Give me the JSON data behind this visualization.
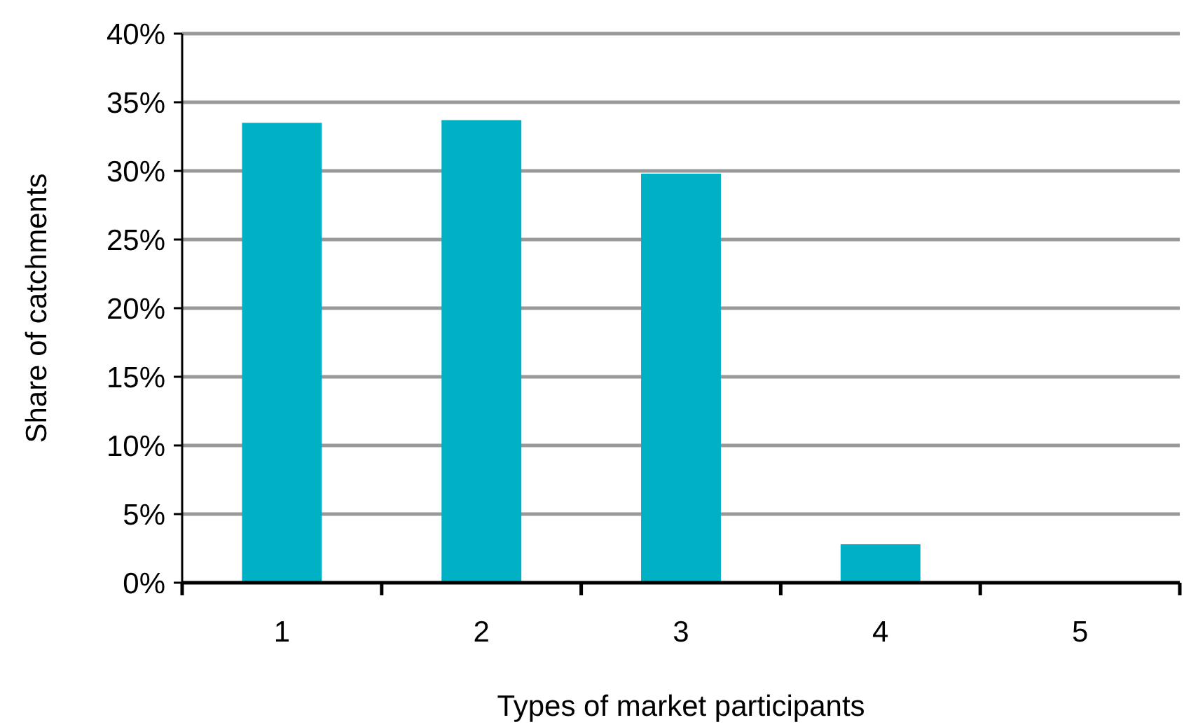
{
  "chart_data": {
    "type": "bar",
    "xlabel": "Types of market participants",
    "ylabel": "Share of catchments",
    "categories": [
      "1",
      "2",
      "3",
      "4",
      "5"
    ],
    "values": [
      33.5,
      33.7,
      29.8,
      2.8,
      0
    ],
    "color": "#00b0c4",
    "ylim": [
      0,
      40
    ],
    "yticks": [
      {
        "value": 0,
        "label": "0%"
      },
      {
        "value": 5,
        "label": "5%"
      },
      {
        "value": 10,
        "label": "10%"
      },
      {
        "value": 15,
        "label": "15%"
      },
      {
        "value": 20,
        "label": "20%"
      },
      {
        "value": 25,
        "label": "25%"
      },
      {
        "value": 30,
        "label": "30%"
      },
      {
        "value": 35,
        "label": "35%"
      },
      {
        "value": 40,
        "label": "40%"
      }
    ],
    "grid": "y"
  }
}
